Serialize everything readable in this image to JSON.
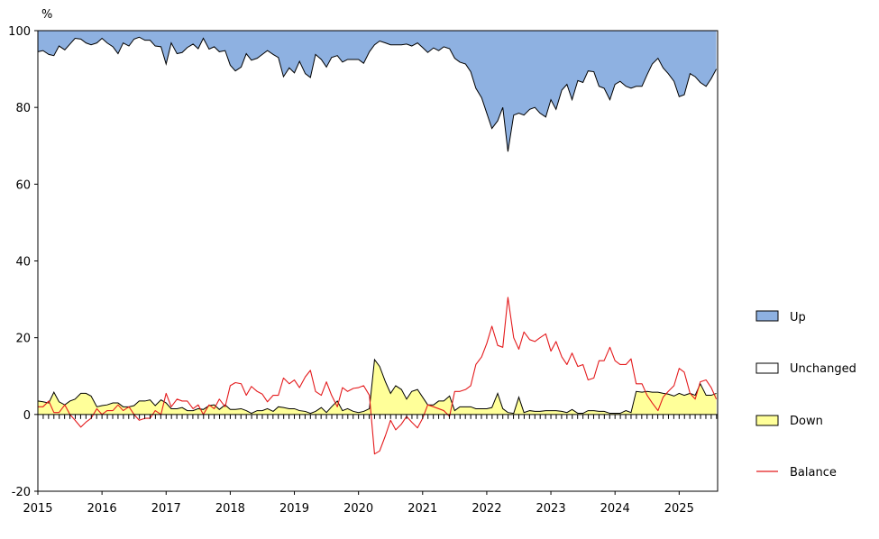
{
  "chart_data": {
    "type": "area",
    "y_unit_label": "%",
    "ylim": [
      -20,
      100
    ],
    "y_ticks": [
      -20,
      0,
      20,
      40,
      60,
      80,
      100
    ],
    "x_range": [
      2015.0,
      2025.6
    ],
    "x_ticks": [
      "2015",
      "2016",
      "2017",
      "2018",
      "2019",
      "2020",
      "2021",
      "2022",
      "2023",
      "2024",
      "2025"
    ],
    "grid": false,
    "legend_position": "right",
    "colors": {
      "up": "#8EB1E1",
      "unchanged": "#FFFFFF",
      "down": "#FFFF99",
      "balance": "#E41A1C",
      "outline": "#000000"
    },
    "series": [
      {
        "name": "Up",
        "kind": "stacked-top-band",
        "description_of_values": "cumulative Down + Unchanged boundary; Up fills to 100",
        "x": [
          2015.0,
          2015.08,
          2015.17,
          2015.25,
          2015.33,
          2015.42,
          2015.5,
          2015.58,
          2015.67,
          2015.75,
          2015.83,
          2015.92,
          2016.0,
          2016.08,
          2016.17,
          2016.25,
          2016.33,
          2016.42,
          2016.5,
          2016.58,
          2016.67,
          2016.75,
          2016.83,
          2016.92,
          2017.0,
          2017.08,
          2017.17,
          2017.25,
          2017.33,
          2017.42,
          2017.5,
          2017.58,
          2017.67,
          2017.75,
          2017.83,
          2017.92,
          2018.0,
          2018.08,
          2018.17,
          2018.25,
          2018.33,
          2018.42,
          2018.5,
          2018.58,
          2018.67,
          2018.75,
          2018.83,
          2018.92,
          2019.0,
          2019.08,
          2019.17,
          2019.25,
          2019.33,
          2019.42,
          2019.5,
          2019.58,
          2019.67,
          2019.75,
          2019.83,
          2019.92,
          2020.0,
          2020.08,
          2020.17,
          2020.25,
          2020.33,
          2020.42,
          2020.5,
          2020.58,
          2020.67,
          2020.75,
          2020.83,
          2020.92,
          2021.0,
          2021.08,
          2021.17,
          2021.25,
          2021.33,
          2021.42,
          2021.5,
          2021.58,
          2021.67,
          2021.75,
          2021.83,
          2021.92,
          2022.0,
          2022.08,
          2022.17,
          2022.25,
          2022.33,
          2022.42,
          2022.5,
          2022.58,
          2022.67,
          2022.75,
          2022.83,
          2022.92,
          2023.0,
          2023.08,
          2023.17,
          2023.25,
          2023.33,
          2023.42,
          2023.5,
          2023.58,
          2023.67,
          2023.75,
          2023.83,
          2023.92,
          2024.0,
          2024.08,
          2024.17,
          2024.25,
          2024.33,
          2024.42,
          2024.5,
          2024.58,
          2024.67,
          2024.75,
          2024.83,
          2024.92,
          2025.0,
          2025.08,
          2025.17,
          2025.25,
          2025.33,
          2025.42,
          2025.5,
          2025.58
        ],
        "values": [
          94.5,
          94.8,
          93.8,
          93.5,
          96.0,
          95.0,
          96.5,
          98.0,
          97.8,
          96.8,
          96.3,
          96.8,
          98.0,
          96.8,
          95.8,
          94.0,
          96.8,
          96.0,
          97.8,
          98.3,
          97.5,
          97.5,
          96.0,
          95.8,
          91.3,
          96.8,
          94.0,
          94.3,
          95.6,
          96.5,
          95.3,
          98.0,
          95.2,
          95.8,
          94.5,
          94.8,
          91.0,
          89.5,
          90.5,
          94.0,
          92.3,
          92.8,
          93.8,
          94.8,
          93.8,
          93.0,
          88.0,
          90.3,
          89.0,
          92.0,
          88.8,
          87.8,
          93.8,
          92.5,
          90.5,
          93.0,
          93.5,
          91.8,
          92.5,
          92.5,
          92.5,
          91.5,
          94.5,
          96.3,
          97.3,
          96.8,
          96.3,
          96.3,
          96.3,
          96.5,
          96.0,
          96.8,
          95.6,
          94.3,
          95.5,
          94.8,
          95.8,
          95.3,
          92.8,
          91.8,
          91.3,
          89.3,
          85.0,
          82.5,
          78.5,
          74.5,
          76.5,
          80.0,
          68.5,
          78.0,
          78.5,
          78.0,
          79.5,
          80.0,
          78.5,
          77.5,
          82.0,
          79.5,
          84.5,
          86.0,
          82.0,
          87.0,
          86.5,
          89.5,
          89.3,
          85.5,
          85.0,
          82.0,
          86.0,
          86.8,
          85.5,
          85.0,
          85.5,
          85.5,
          88.5,
          91.3,
          92.8,
          90.3,
          88.8,
          86.8,
          82.8,
          83.3,
          88.8,
          88.0,
          86.5,
          85.5,
          87.5,
          90.0
        ]
      },
      {
        "name": "Unchanged",
        "kind": "stacked-middle-band",
        "description_of_values": "fills between Down and the Up boundary"
      },
      {
        "name": "Down",
        "x": [
          2015.0,
          2015.08,
          2015.17,
          2015.25,
          2015.33,
          2015.42,
          2015.5,
          2015.58,
          2015.67,
          2015.75,
          2015.83,
          2015.92,
          2016.0,
          2016.08,
          2016.17,
          2016.25,
          2016.33,
          2016.42,
          2016.5,
          2016.58,
          2016.67,
          2016.75,
          2016.83,
          2016.92,
          2017.0,
          2017.08,
          2017.17,
          2017.25,
          2017.33,
          2017.42,
          2017.5,
          2017.58,
          2017.67,
          2017.75,
          2017.83,
          2017.92,
          2018.0,
          2018.08,
          2018.17,
          2018.25,
          2018.33,
          2018.42,
          2018.5,
          2018.58,
          2018.67,
          2018.75,
          2018.83,
          2018.92,
          2019.0,
          2019.08,
          2019.17,
          2019.25,
          2019.33,
          2019.42,
          2019.5,
          2019.58,
          2019.67,
          2019.75,
          2019.83,
          2019.92,
          2020.0,
          2020.08,
          2020.17,
          2020.25,
          2020.33,
          2020.42,
          2020.5,
          2020.58,
          2020.67,
          2020.75,
          2020.83,
          2020.92,
          2021.0,
          2021.08,
          2021.17,
          2021.25,
          2021.33,
          2021.42,
          2021.5,
          2021.58,
          2021.67,
          2021.75,
          2021.83,
          2021.92,
          2022.0,
          2022.08,
          2022.17,
          2022.25,
          2022.33,
          2022.42,
          2022.5,
          2022.58,
          2022.67,
          2022.75,
          2022.83,
          2022.92,
          2023.0,
          2023.08,
          2023.17,
          2023.25,
          2023.33,
          2023.42,
          2023.5,
          2023.58,
          2023.67,
          2023.75,
          2023.83,
          2023.92,
          2024.0,
          2024.08,
          2024.17,
          2024.25,
          2024.33,
          2024.42,
          2024.5,
          2024.58,
          2024.67,
          2024.75,
          2024.83,
          2024.92,
          2025.0,
          2025.08,
          2025.17,
          2025.25,
          2025.33,
          2025.42,
          2025.5,
          2025.58
        ],
        "values": [
          3.5,
          3.3,
          3.0,
          5.8,
          3.3,
          2.5,
          3.5,
          4.0,
          5.5,
          5.5,
          4.8,
          2.0,
          2.3,
          2.5,
          3.0,
          3.0,
          2.0,
          2.0,
          2.3,
          3.5,
          3.5,
          3.8,
          2.3,
          3.8,
          3.0,
          1.5,
          1.5,
          1.8,
          1.0,
          1.0,
          1.5,
          1.3,
          2.3,
          2.5,
          1.3,
          2.5,
          1.3,
          1.3,
          1.5,
          1.0,
          0.3,
          1.0,
          1.0,
          1.5,
          0.8,
          2.0,
          1.8,
          1.5,
          1.5,
          1.0,
          0.8,
          0.3,
          0.8,
          1.8,
          0.5,
          2.0,
          3.5,
          1.0,
          1.5,
          0.8,
          0.5,
          0.8,
          1.5,
          14.3,
          12.5,
          8.5,
          5.5,
          7.5,
          6.5,
          4.0,
          6.0,
          6.5,
          4.5,
          2.5,
          2.5,
          3.5,
          3.5,
          4.8,
          1.0,
          2.0,
          2.0,
          2.0,
          1.5,
          1.5,
          1.5,
          1.8,
          5.5,
          1.5,
          0.5,
          0.3,
          4.5,
          0.5,
          1.0,
          0.8,
          0.8,
          1.0,
          1.0,
          1.0,
          0.8,
          0.5,
          1.3,
          0.3,
          0.3,
          1.0,
          1.0,
          0.8,
          0.8,
          0.3,
          0.3,
          0.3,
          1.0,
          0.5,
          6.0,
          5.8,
          6.0,
          5.8,
          5.8,
          5.5,
          5.3,
          4.8,
          5.5,
          5.0,
          5.5,
          5.0,
          8.0,
          5.0,
          5.0,
          5.5
        ]
      },
      {
        "name": "Balance",
        "x": [
          2015.0,
          2015.08,
          2015.17,
          2015.25,
          2015.33,
          2015.42,
          2015.5,
          2015.58,
          2015.67,
          2015.75,
          2015.83,
          2015.92,
          2016.0,
          2016.08,
          2016.17,
          2016.25,
          2016.33,
          2016.42,
          2016.5,
          2016.58,
          2016.67,
          2016.75,
          2016.83,
          2016.92,
          2017.0,
          2017.08,
          2017.17,
          2017.25,
          2017.33,
          2017.42,
          2017.5,
          2017.58,
          2017.67,
          2017.75,
          2017.83,
          2017.92,
          2018.0,
          2018.08,
          2018.17,
          2018.25,
          2018.33,
          2018.42,
          2018.5,
          2018.58,
          2018.67,
          2018.75,
          2018.83,
          2018.92,
          2019.0,
          2019.08,
          2019.17,
          2019.25,
          2019.33,
          2019.42,
          2019.5,
          2019.58,
          2019.67,
          2019.75,
          2019.83,
          2019.92,
          2020.0,
          2020.08,
          2020.17,
          2020.25,
          2020.33,
          2020.42,
          2020.5,
          2020.58,
          2020.67,
          2020.75,
          2020.83,
          2020.92,
          2021.0,
          2021.08,
          2021.17,
          2021.25,
          2021.33,
          2021.42,
          2021.5,
          2021.58,
          2021.67,
          2021.75,
          2021.83,
          2021.92,
          2022.0,
          2022.08,
          2022.17,
          2022.25,
          2022.33,
          2022.42,
          2022.5,
          2022.58,
          2022.67,
          2022.75,
          2022.83,
          2022.92,
          2023.0,
          2023.08,
          2023.17,
          2023.25,
          2023.33,
          2023.42,
          2023.5,
          2023.58,
          2023.67,
          2023.75,
          2023.83,
          2023.92,
          2024.0,
          2024.08,
          2024.17,
          2024.25,
          2024.33,
          2024.42,
          2024.5,
          2024.58,
          2024.67,
          2024.75,
          2024.83,
          2024.92,
          2025.0,
          2025.08,
          2025.17,
          2025.25,
          2025.33,
          2025.42,
          2025.5,
          2025.58
        ],
        "values": [
          2.0,
          2.0,
          3.5,
          0.5,
          0.5,
          2.5,
          0.0,
          -1.5,
          -3.3,
          -2.0,
          -1.0,
          1.5,
          0.0,
          1.0,
          1.0,
          2.5,
          1.0,
          2.0,
          0.0,
          -1.5,
          -1.0,
          -1.0,
          1.0,
          0.0,
          5.5,
          2.0,
          4.0,
          3.5,
          3.5,
          1.5,
          2.5,
          0.0,
          2.5,
          1.5,
          4.0,
          2.0,
          7.5,
          8.3,
          8.0,
          5.0,
          7.3,
          6.0,
          5.3,
          3.3,
          5.0,
          5.0,
          9.5,
          8.0,
          9.0,
          7.0,
          9.8,
          11.5,
          6.0,
          5.0,
          8.5,
          5.0,
          2.0,
          7.0,
          6.0,
          6.8,
          7.0,
          7.5,
          5.0,
          -10.3,
          -9.5,
          -5.5,
          -1.5,
          -4.0,
          -2.5,
          -0.5,
          -2.0,
          -3.5,
          -1.0,
          2.5,
          2.0,
          1.5,
          1.0,
          -0.5,
          6.0,
          6.0,
          6.5,
          7.5,
          13.0,
          15.0,
          18.5,
          23.0,
          18.0,
          17.5,
          30.5,
          20.0,
          17.0,
          21.5,
          19.5,
          19.0,
          20.0,
          21.0,
          16.5,
          19.0,
          15.0,
          13.0,
          16.0,
          12.5,
          13.0,
          9.0,
          9.5,
          14.0,
          14.0,
          17.5,
          14.0,
          13.0,
          13.0,
          14.5,
          8.0,
          8.0,
          5.0,
          3.0,
          1.0,
          4.5,
          6.0,
          7.5,
          12.0,
          11.0,
          5.5,
          4.0,
          8.5,
          9.0,
          7.0,
          4.0
        ]
      }
    ]
  },
  "legend": {
    "items": [
      {
        "label": "Up"
      },
      {
        "label": "Unchanged"
      },
      {
        "label": "Down"
      },
      {
        "label": "Balance"
      }
    ]
  }
}
